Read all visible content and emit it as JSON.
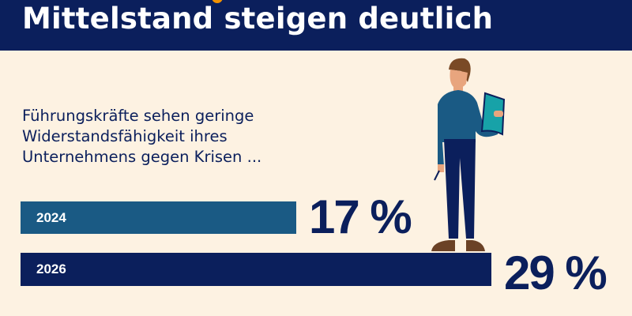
{
  "header": {
    "title": "Mittelstand steigen deutlich"
  },
  "subtitle": [
    "Führungskräfte sehen geringe",
    "Widerstandsfähigkeit ihres",
    "Unternehmens gegen Krisen ..."
  ],
  "colors": {
    "header": "#0b1f5c",
    "background": "#fdf2e2",
    "bar_2024": "#1a5a84",
    "bar_2026": "#0b1f5c",
    "accent": "#f39200"
  },
  "chart_data": {
    "type": "bar",
    "orientation": "horizontal",
    "title": "Führungskräfte sehen geringe Widerstandsfähigkeit ihres Unternehmens gegen Krisen ...",
    "categories": [
      "2024",
      "2026"
    ],
    "values": [
      17,
      29
    ],
    "labels": [
      "17 %",
      "29 %"
    ],
    "unit": "%"
  }
}
